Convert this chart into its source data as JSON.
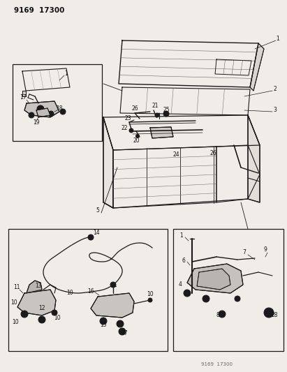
{
  "title": "9169  17300",
  "footer": "9169  17300",
  "bg_color": "#f0ede8",
  "line_color": "#1a1a1a",
  "text_color": "#111111",
  "fig_width": 4.11,
  "fig_height": 5.33,
  "dpi": 100,
  "gray": "#888888",
  "darkgray": "#444444",
  "lightgray": "#cccccc"
}
